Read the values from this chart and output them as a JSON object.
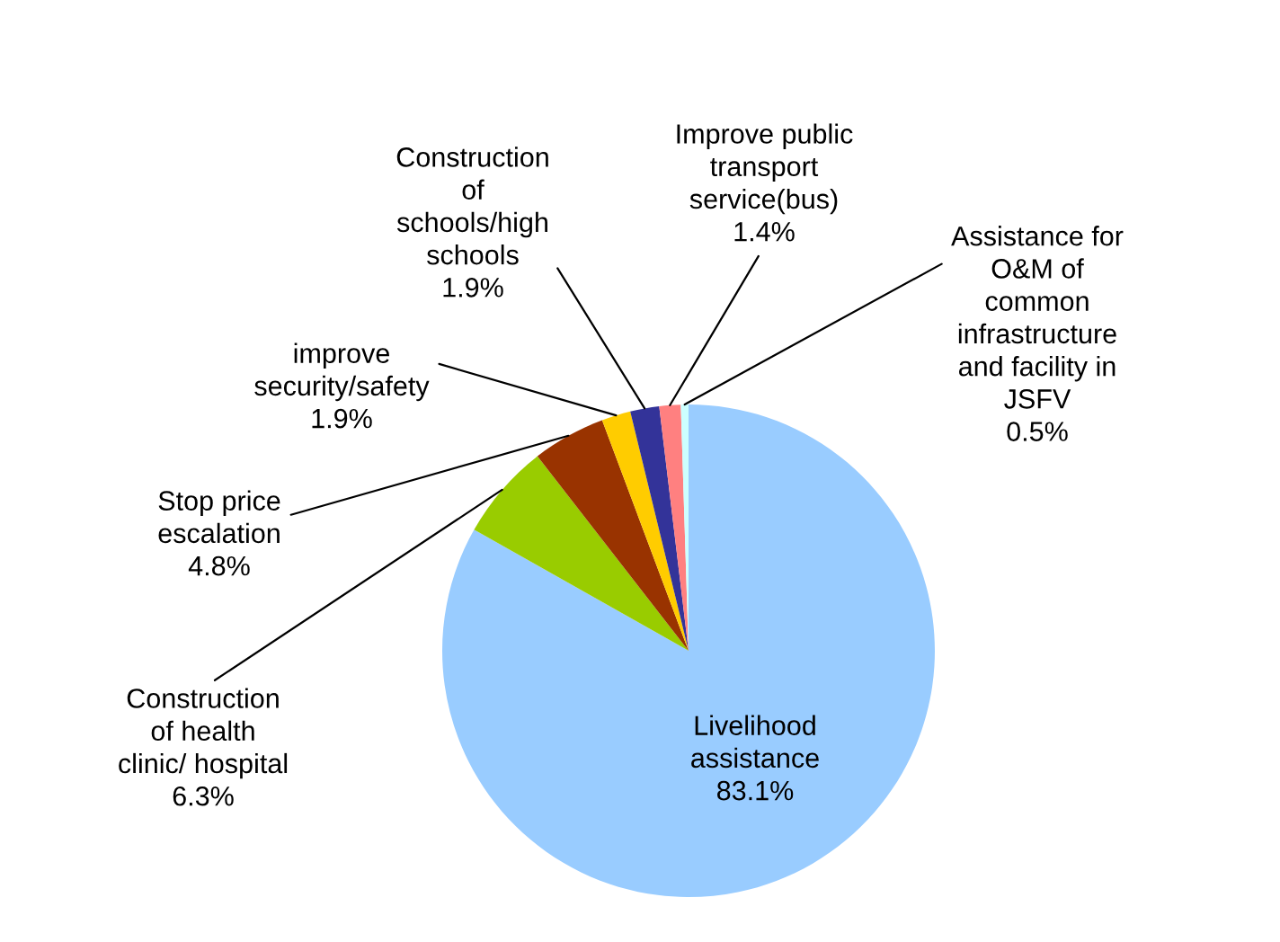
{
  "chart_data": {
    "type": "pie",
    "categories": [
      "Livelihood\nassistance",
      "Construction\nof health\nclinic/ hospital",
      "Stop price\nescalation",
      "improve\nsecurity/safety",
      "Construction\nof\nschools/high\nschools",
      "Improve public\ntransport\nservice(bus)",
      "Assistance for\nO&M of\ncommon\ninfrastructure\nand facility in\nJSFV"
    ],
    "values": [
      83.1,
      6.3,
      4.8,
      1.9,
      1.9,
      1.4,
      0.5
    ],
    "value_labels": [
      "83.1%",
      "6.3%",
      "4.8%",
      "1.9%",
      "1.9%",
      "1.4%",
      "0.5%"
    ],
    "colors": [
      "#99ccff",
      "#99cc00",
      "#993300",
      "#ffcc00",
      "#333399",
      "#ff8080",
      "#ccffff"
    ],
    "legend": false
  }
}
